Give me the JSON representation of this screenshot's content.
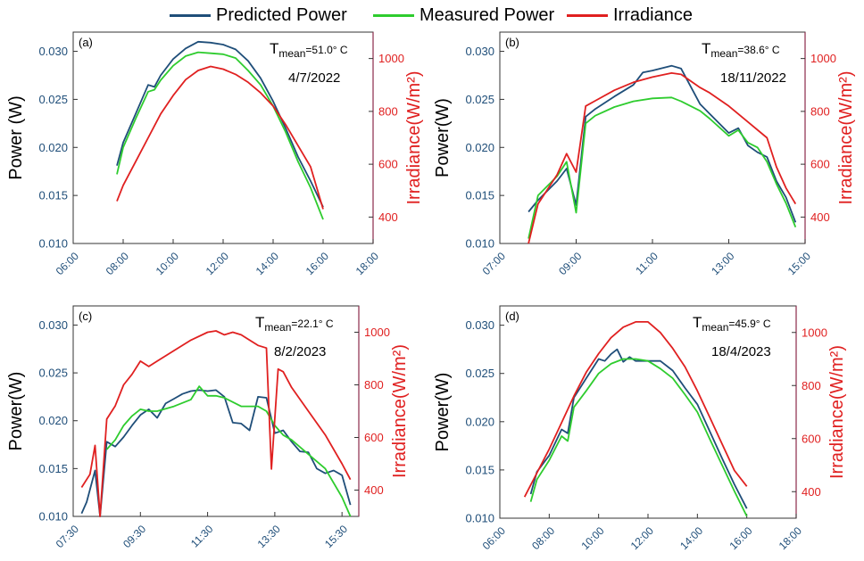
{
  "legend": [
    {
      "name": "Predicted Power",
      "color": "#1f4e79"
    },
    {
      "name": "Measured Power",
      "color": "#2ecc2e"
    },
    {
      "name": "Irradiance",
      "color": "#e02020"
    }
  ],
  "chart_data": [
    {
      "type": "line",
      "panel": "(a)",
      "temp_label_main": "T",
      "temp_label_sub": "mean",
      "temp_value": "=51.0° C",
      "date": "4/7/2022",
      "ylabel_left": "Power (W)",
      "ylabel_right": "Irradiance(W/m²)",
      "xlim": [
        6,
        18
      ],
      "xticks": [
        6,
        8,
        10,
        12,
        14,
        16,
        18
      ],
      "xtick_labels": [
        "06:00",
        "08:00",
        "10:00",
        "12:00",
        "14:00",
        "16:00",
        "18:00"
      ],
      "ylim_left": [
        0.01,
        0.032
      ],
      "yticks_left": [
        0.01,
        0.015,
        0.02,
        0.025,
        0.03
      ],
      "ytick_labels_left": [
        "0.010",
        "0.015",
        "0.020",
        "0.025",
        "0.030"
      ],
      "ylim_right": [
        300,
        1100
      ],
      "yticks_right": [
        400,
        600,
        800,
        1000
      ],
      "ytick_labels_right": [
        "400",
        "600",
        "800",
        "1000"
      ],
      "series": [
        {
          "name": "Predicted Power",
          "axis": "left",
          "color": "#1f4e79",
          "x": [
            7.75,
            8.0,
            8.5,
            9.0,
            9.25,
            9.5,
            10.0,
            10.5,
            11.0,
            11.5,
            12.0,
            12.5,
            13.0,
            13.5,
            14.0,
            14.5,
            15.0,
            15.5,
            16.0
          ],
          "y": [
            0.0181,
            0.0205,
            0.0235,
            0.0265,
            0.0263,
            0.0275,
            0.0292,
            0.0303,
            0.031,
            0.0309,
            0.0307,
            0.0302,
            0.029,
            0.0272,
            0.0248,
            0.022,
            0.019,
            0.0165,
            0.0138
          ]
        },
        {
          "name": "Measured Power",
          "axis": "left",
          "color": "#2ecc2e",
          "x": [
            7.75,
            8.0,
            8.5,
            9.0,
            9.25,
            9.5,
            10.0,
            10.5,
            11.0,
            11.5,
            12.0,
            12.5,
            13.0,
            13.5,
            14.0,
            14.5,
            15.0,
            15.5,
            16.0
          ],
          "y": [
            0.0172,
            0.02,
            0.023,
            0.0258,
            0.026,
            0.027,
            0.0285,
            0.0295,
            0.0299,
            0.0298,
            0.0297,
            0.0293,
            0.028,
            0.0265,
            0.0243,
            0.0216,
            0.0185,
            0.0158,
            0.0125
          ]
        },
        {
          "name": "Irradiance",
          "axis": "right",
          "color": "#e02020",
          "x": [
            7.75,
            8.0,
            8.5,
            9.0,
            9.5,
            10.0,
            10.5,
            11.0,
            11.5,
            12.0,
            12.5,
            13.0,
            13.5,
            14.0,
            14.5,
            15.0,
            15.5,
            16.0
          ],
          "y": [
            460,
            520,
            610,
            700,
            790,
            860,
            920,
            955,
            970,
            960,
            940,
            910,
            870,
            820,
            750,
            670,
            590,
            430
          ]
        }
      ]
    },
    {
      "type": "line",
      "panel": "(b)",
      "temp_label_main": "T",
      "temp_label_sub": "mean",
      "temp_value": "=38.6° C",
      "date": "18/11/2022",
      "ylabel_left": "Power(W)",
      "ylabel_right": "Irradiance(W/m²)",
      "xlim": [
        7,
        15
      ],
      "xticks": [
        7,
        9,
        11,
        13,
        15
      ],
      "xtick_labels": [
        "07:00",
        "09:00",
        "11:00",
        "13:00",
        "15:00"
      ],
      "ylim_left": [
        0.01,
        0.032
      ],
      "yticks_left": [
        0.01,
        0.015,
        0.02,
        0.025,
        0.03
      ],
      "ytick_labels_left": [
        "0.010",
        "0.015",
        "0.020",
        "0.025",
        "0.030"
      ],
      "ylim_right": [
        300,
        1100
      ],
      "yticks_right": [
        400,
        600,
        800,
        1000
      ],
      "ytick_labels_right": [
        "400",
        "600",
        "800",
        "1000"
      ],
      "series": [
        {
          "name": "Predicted Power",
          "axis": "left",
          "color": "#1f4e79",
          "x": [
            7.75,
            8.0,
            8.5,
            8.75,
            9.0,
            9.25,
            9.5,
            10.0,
            10.5,
            10.75,
            11.0,
            11.5,
            11.75,
            12.25,
            12.5,
            13.0,
            13.25,
            13.5,
            13.75,
            14.0,
            14.25,
            14.5,
            14.75
          ],
          "y": [
            0.0133,
            0.0145,
            0.0165,
            0.0178,
            0.014,
            0.0232,
            0.024,
            0.0253,
            0.0265,
            0.0278,
            0.028,
            0.0285,
            0.0282,
            0.0245,
            0.0235,
            0.0215,
            0.022,
            0.0202,
            0.0195,
            0.019,
            0.0165,
            0.0148,
            0.0122
          ]
        },
        {
          "name": "Measured Power",
          "axis": "left",
          "color": "#2ecc2e",
          "x": [
            7.75,
            8.0,
            8.5,
            8.75,
            9.0,
            9.25,
            9.5,
            10.0,
            10.5,
            11.0,
            11.5,
            11.75,
            12.25,
            12.5,
            13.0,
            13.25,
            13.5,
            13.75,
            14.0,
            14.25,
            14.5,
            14.75
          ],
          "y": [
            0.0105,
            0.015,
            0.017,
            0.0185,
            0.0132,
            0.0225,
            0.0233,
            0.0242,
            0.0248,
            0.0251,
            0.0252,
            0.0248,
            0.0238,
            0.023,
            0.0212,
            0.0218,
            0.0205,
            0.02,
            0.0185,
            0.0162,
            0.0142,
            0.0117
          ]
        },
        {
          "name": "Irradiance",
          "axis": "right",
          "color": "#e02020",
          "x": [
            7.75,
            8.0,
            8.5,
            8.75,
            9.0,
            9.25,
            9.5,
            10.0,
            10.5,
            11.0,
            11.5,
            11.75,
            12.25,
            12.5,
            13.0,
            13.5,
            14.0,
            14.25,
            14.5,
            14.75
          ],
          "y": [
            300,
            450,
            560,
            640,
            570,
            820,
            840,
            880,
            910,
            930,
            945,
            940,
            890,
            870,
            820,
            760,
            700,
            590,
            510,
            450
          ]
        }
      ]
    },
    {
      "type": "line",
      "panel": "(c)",
      "temp_label_main": "T",
      "temp_label_sub": "mean",
      "temp_value": "=22.1° C",
      "date": "8/2/2023",
      "ylabel_left": "Power(W)",
      "ylabel_right": "Irradiance(W/m²)",
      "xlim": [
        7.5,
        16.0
      ],
      "xticks": [
        7.5,
        9.5,
        11.5,
        13.5,
        15.5
      ],
      "xtick_labels": [
        "07:30",
        "09:30",
        "11:30",
        "13:30",
        "15:30"
      ],
      "ylim_left": [
        0.01,
        0.032
      ],
      "yticks_left": [
        0.01,
        0.015,
        0.02,
        0.025,
        0.03
      ],
      "ytick_labels_left": [
        "0.010",
        "0.015",
        "0.020",
        "0.025",
        "0.030"
      ],
      "ylim_right": [
        300,
        1100
      ],
      "yticks_right": [
        400,
        600,
        800,
        1000
      ],
      "ytick_labels_right": [
        "400",
        "600",
        "800",
        "1000"
      ],
      "series": [
        {
          "name": "Predicted Power",
          "axis": "left",
          "color": "#1f4e79",
          "x": [
            7.75,
            7.9,
            8.15,
            8.3,
            8.5,
            8.75,
            9.0,
            9.25,
            9.5,
            9.75,
            10.0,
            10.25,
            10.5,
            10.75,
            11.0,
            11.25,
            11.5,
            11.75,
            12.0,
            12.25,
            12.5,
            12.75,
            13.0,
            13.25,
            13.5,
            13.75,
            14.0,
            14.25,
            14.5,
            14.75,
            15.0,
            15.25,
            15.5,
            15.75
          ],
          "y": [
            0.0103,
            0.0115,
            0.0148,
            0.01,
            0.0178,
            0.0173,
            0.0183,
            0.0195,
            0.0206,
            0.0212,
            0.0203,
            0.0218,
            0.0223,
            0.0228,
            0.0231,
            0.0232,
            0.0231,
            0.0232,
            0.0225,
            0.0198,
            0.0197,
            0.019,
            0.0225,
            0.0224,
            0.0187,
            0.019,
            0.0178,
            0.0168,
            0.0167,
            0.015,
            0.0145,
            0.0148,
            0.0143,
            0.0112
          ]
        },
        {
          "name": "Measured Power",
          "axis": "left",
          "color": "#2ecc2e",
          "x": [
            8.5,
            8.75,
            9.0,
            9.25,
            9.5,
            9.75,
            10.0,
            10.5,
            11.0,
            11.25,
            11.5,
            11.75,
            12.0,
            12.5,
            13.0,
            13.25,
            13.5,
            13.75,
            14.0,
            14.5,
            15.0,
            15.5,
            15.75
          ],
          "y": [
            0.017,
            0.018,
            0.0195,
            0.0205,
            0.0212,
            0.021,
            0.021,
            0.0215,
            0.0222,
            0.0236,
            0.0226,
            0.0226,
            0.0224,
            0.0215,
            0.0215,
            0.021,
            0.0195,
            0.0185,
            0.018,
            0.0165,
            0.015,
            0.012,
            0.01
          ]
        },
        {
          "name": "Irradiance",
          "axis": "right",
          "color": "#e02020",
          "x": [
            7.75,
            8.0,
            8.15,
            8.3,
            8.5,
            8.75,
            9.0,
            9.25,
            9.5,
            9.75,
            10.0,
            10.5,
            11.0,
            11.5,
            11.75,
            12.0,
            12.25,
            12.5,
            13.0,
            13.25,
            13.4,
            13.6,
            13.75,
            14.0,
            14.5,
            15.0,
            15.5,
            15.75
          ],
          "y": [
            410,
            460,
            570,
            300,
            670,
            720,
            800,
            840,
            890,
            870,
            890,
            930,
            970,
            1000,
            1005,
            990,
            1000,
            990,
            950,
            940,
            480,
            860,
            850,
            790,
            700,
            610,
            500,
            440
          ]
        }
      ]
    },
    {
      "type": "line",
      "panel": "(d)",
      "temp_label_main": "T",
      "temp_label_sub": "mean",
      "temp_value": "=45.9° C",
      "date": "18/4/2023",
      "ylabel_left": "Power(W)",
      "ylabel_right": "Irradiance(W/m²)",
      "xlim": [
        6,
        18
      ],
      "xticks": [
        6,
        8,
        10,
        12,
        14,
        16,
        18
      ],
      "xtick_labels": [
        "06:00",
        "08:00",
        "10:00",
        "12:00",
        "14:00",
        "16:00",
        "18:00"
      ],
      "ylim_left": [
        0.01,
        0.032
      ],
      "yticks_left": [
        0.01,
        0.015,
        0.02,
        0.025,
        0.03
      ],
      "ytick_labels_left": [
        "0.010",
        "0.015",
        "0.020",
        "0.025",
        "0.030"
      ],
      "ylim_right": [
        300,
        1100
      ],
      "yticks_right": [
        400,
        600,
        800,
        1000
      ],
      "ytick_labels_right": [
        "400",
        "600",
        "800",
        "1000"
      ],
      "series": [
        {
          "name": "Predicted Power",
          "axis": "left",
          "color": "#1f4e79",
          "x": [
            7.25,
            7.5,
            8.0,
            8.5,
            8.75,
            9.0,
            9.5,
            10.0,
            10.25,
            10.5,
            10.75,
            11.0,
            11.25,
            11.5,
            12.0,
            12.5,
            13.0,
            13.5,
            14.0,
            14.5,
            15.0,
            15.5,
            16.0
          ],
          "y": [
            0.0125,
            0.0148,
            0.0165,
            0.0192,
            0.0188,
            0.0225,
            0.0245,
            0.0265,
            0.0263,
            0.027,
            0.0275,
            0.0262,
            0.0267,
            0.0263,
            0.0263,
            0.0263,
            0.0253,
            0.0235,
            0.0218,
            0.019,
            0.0162,
            0.0135,
            0.011
          ]
        },
        {
          "name": "Measured Power",
          "axis": "left",
          "color": "#2ecc2e",
          "x": [
            7.25,
            7.5,
            8.0,
            8.5,
            8.75,
            9.0,
            9.5,
            10.0,
            10.5,
            11.0,
            11.5,
            12.0,
            12.5,
            13.0,
            13.5,
            14.0,
            14.5,
            15.0,
            15.5,
            16.0
          ],
          "y": [
            0.0117,
            0.014,
            0.016,
            0.0185,
            0.018,
            0.0215,
            0.0232,
            0.025,
            0.026,
            0.0265,
            0.0265,
            0.0263,
            0.0255,
            0.0245,
            0.0228,
            0.021,
            0.0182,
            0.0155,
            0.0128,
            0.0102
          ]
        },
        {
          "name": "Irradiance",
          "axis": "right",
          "color": "#e02020",
          "x": [
            7.0,
            7.5,
            8.0,
            8.5,
            9.0,
            9.5,
            10.0,
            10.5,
            11.0,
            11.5,
            12.0,
            12.5,
            13.0,
            13.5,
            14.0,
            14.5,
            15.0,
            15.5,
            16.0
          ],
          "y": [
            380,
            470,
            560,
            660,
            760,
            850,
            920,
            980,
            1020,
            1040,
            1040,
            1000,
            940,
            870,
            780,
            680,
            580,
            480,
            420
          ]
        }
      ]
    }
  ]
}
